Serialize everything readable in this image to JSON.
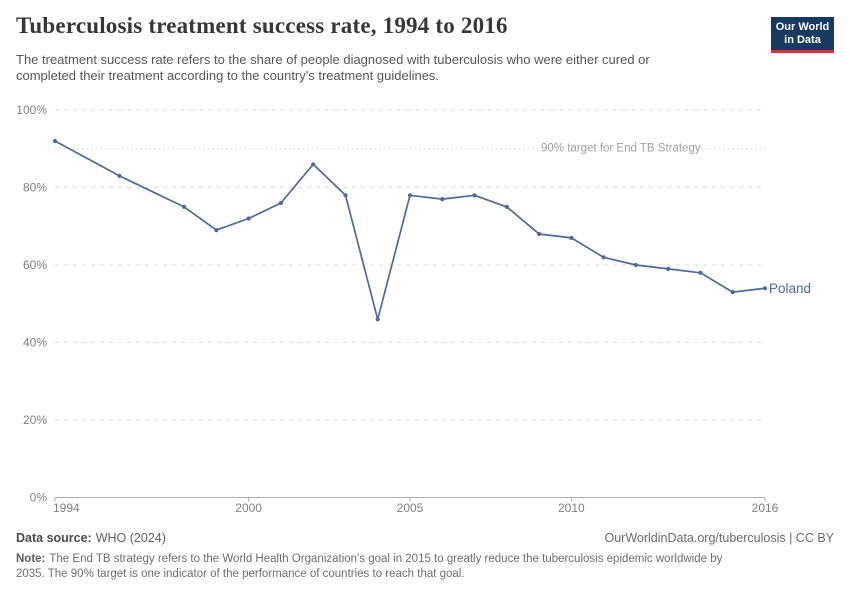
{
  "header": {
    "title": "Tuberculosis treatment success rate, 1994 to 2016",
    "subtitle_lines": [
      "The treatment success rate refers to the share of people diagnosed with tuberculosis who were either cured or",
      "completed their treatment according to the country's treatment guidelines."
    ],
    "logo": {
      "line1": "Our World",
      "line2": "in Data"
    }
  },
  "chart_data": {
    "type": "line",
    "title": "Tuberculosis treatment success rate, 1994 to 2016",
    "xlabel": "",
    "ylabel": "",
    "xlim": [
      1994,
      2016
    ],
    "ylim": [
      0,
      100
    ],
    "x_ticks": [
      1994,
      2000,
      2005,
      2010,
      2016
    ],
    "y_ticks": [
      0,
      20,
      40,
      60,
      80,
      100
    ],
    "y_tick_suffix": "%",
    "grid": "horizontal-dashed",
    "legend_position": "end-of-line-label",
    "target_line": {
      "value": 90,
      "label": "90% target for End TB Strategy"
    },
    "series": [
      {
        "name": "Poland",
        "color": "#4C6A9C",
        "x": [
          1994,
          1996,
          1998,
          1999,
          2000,
          2001,
          2002,
          2003,
          2004,
          2005,
          2006,
          2007,
          2008,
          2009,
          2010,
          2011,
          2012,
          2013,
          2014,
          2015,
          2016
        ],
        "values": [
          92,
          83,
          75,
          69,
          72,
          76,
          86,
          78,
          46,
          78,
          77,
          78,
          75,
          68,
          67,
          62,
          60,
          59,
          58,
          53,
          54
        ]
      }
    ]
  },
  "footer": {
    "source_label": "Data source:",
    "source_value": "WHO (2024)",
    "citation": "OurWorldinData.org/tuberculosis | CC BY",
    "note_label": "Note:",
    "note_lines": [
      "The End TB strategy refers to the World Health Organization's goal in 2015 to greatly reduce the tuberculosis epidemic worldwide by",
      "2035. The 90% target is one indicator of the performance of countries to reach that goal."
    ]
  },
  "colors": {
    "series_blue": "#4C6A9C",
    "logo_navy": "#183a62",
    "logo_red": "#cc3b31",
    "grid": "#dcdcdc",
    "axis": "#adadad",
    "tick_text": "#808080",
    "target_line": "#cdcdcd",
    "target_text": "#9e9e9e",
    "title_text": "#373737",
    "subtitle_text": "#565656"
  }
}
